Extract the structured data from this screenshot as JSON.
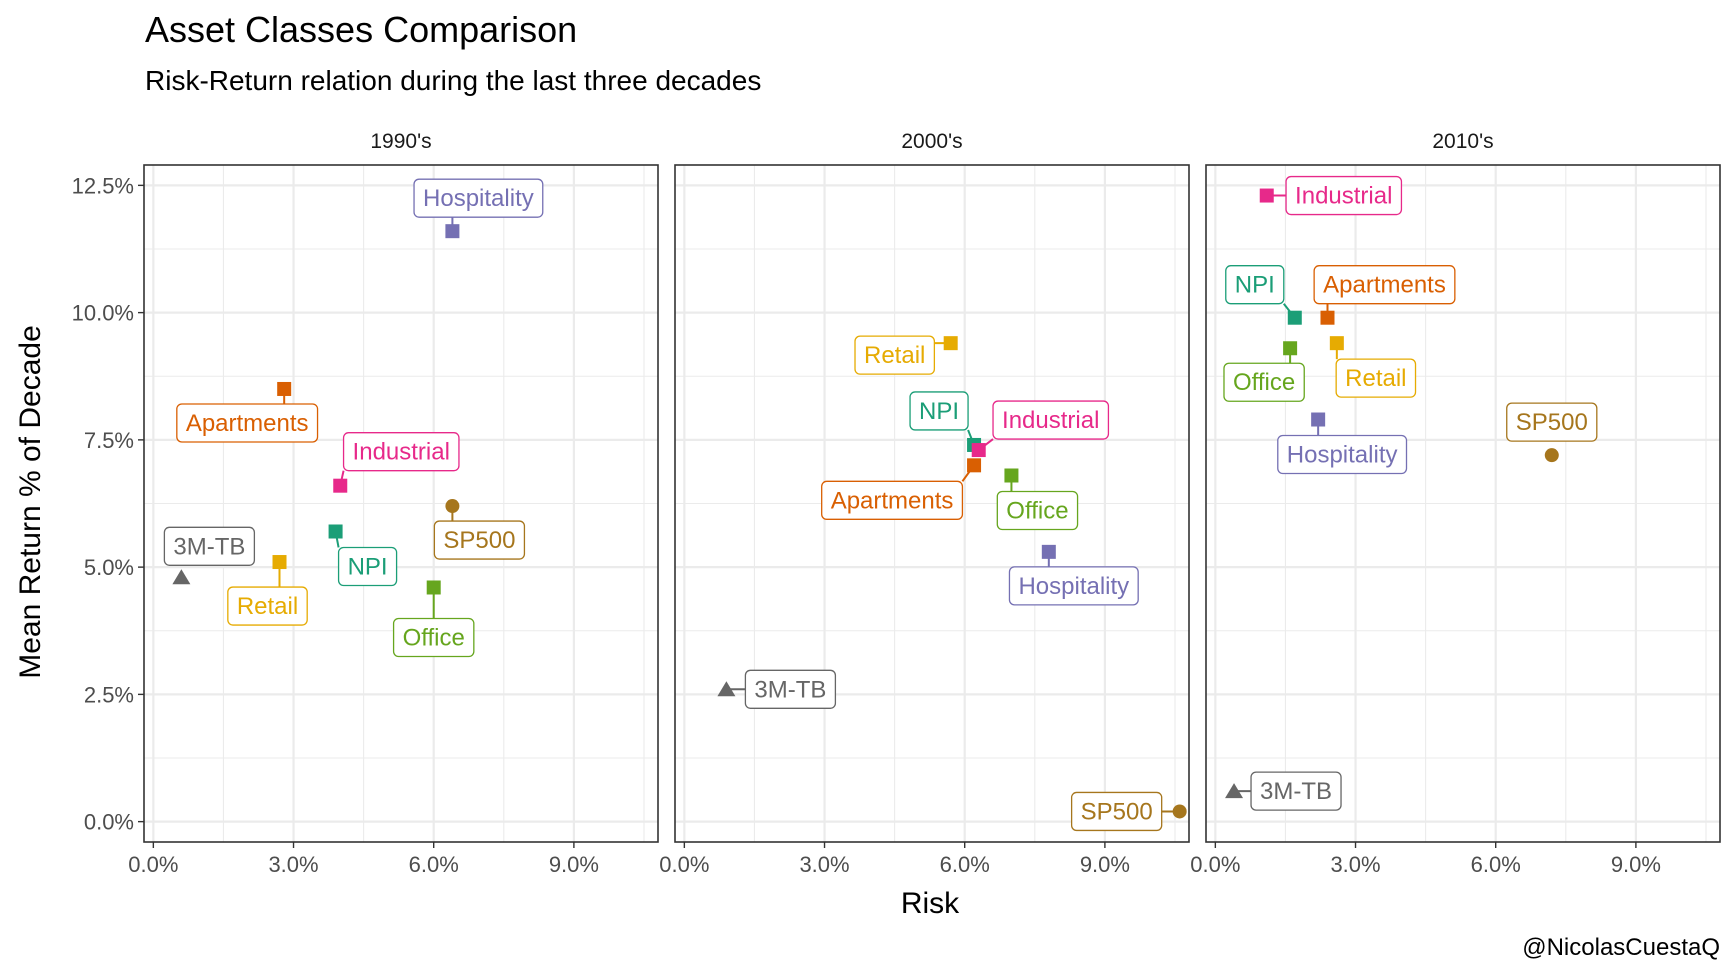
{
  "title": "Asset Classes Comparison",
  "subtitle": "Risk-Return relation during the last three decades",
  "caption": "@NicolasCuestaQ",
  "colors": {
    "NPI": "#1b9e77",
    "Apartments": "#d95f02",
    "Hospitality": "#7570b3",
    "Industrial": "#e7298a",
    "Office": "#66a61e",
    "Retail": "#e6ab02",
    "SP500": "#a6761d",
    "3M-TB": "#666666"
  },
  "chart_data": {
    "type": "scatter",
    "facet_by": "decade",
    "xlabel": "Risk",
    "ylabel": "Mean Return % of Decade",
    "xlim": [
      -0.2,
      10.8
    ],
    "ylim": [
      -0.4,
      12.9
    ],
    "xticks": [
      0,
      3,
      6,
      9
    ],
    "xtick_labels": [
      "0.0%",
      "3.0%",
      "6.0%",
      "9.0%"
    ],
    "yticks": [
      0,
      2.5,
      5,
      7.5,
      10,
      12.5
    ],
    "ytick_labels": [
      "0.0%",
      "2.5%",
      "5.0%",
      "7.5%",
      "10.0%",
      "12.5%"
    ],
    "grid": true,
    "legend": "none",
    "panels": [
      {
        "name": "1990's",
        "points": [
          {
            "asset": "Hospitality",
            "x": 6.4,
            "y": 11.6,
            "shape": "square"
          },
          {
            "asset": "Apartments",
            "x": 2.8,
            "y": 8.5,
            "shape": "square"
          },
          {
            "asset": "Industrial",
            "x": 4.0,
            "y": 6.6,
            "shape": "square"
          },
          {
            "asset": "NPI",
            "x": 3.9,
            "y": 5.7,
            "shape": "square"
          },
          {
            "asset": "SP500",
            "x": 6.4,
            "y": 6.2,
            "shape": "circle"
          },
          {
            "asset": "Retail",
            "x": 2.7,
            "y": 5.1,
            "shape": "square"
          },
          {
            "asset": "Office",
            "x": 6.0,
            "y": 4.6,
            "shape": "square"
          },
          {
            "asset": "3M-TB",
            "x": 0.6,
            "y": 4.8,
            "shape": "triangle"
          }
        ]
      },
      {
        "name": "2000's",
        "points": [
          {
            "asset": "Retail",
            "x": 5.7,
            "y": 9.4,
            "shape": "square"
          },
          {
            "asset": "NPI",
            "x": 6.2,
            "y": 7.4,
            "shape": "square"
          },
          {
            "asset": "Industrial",
            "x": 6.3,
            "y": 7.3,
            "shape": "square"
          },
          {
            "asset": "Apartments",
            "x": 6.2,
            "y": 7.0,
            "shape": "square"
          },
          {
            "asset": "Office",
            "x": 7.0,
            "y": 6.8,
            "shape": "square"
          },
          {
            "asset": "Hospitality",
            "x": 7.8,
            "y": 5.3,
            "shape": "square"
          },
          {
            "asset": "3M-TB",
            "x": 0.9,
            "y": 2.6,
            "shape": "triangle"
          },
          {
            "asset": "SP500",
            "x": 10.6,
            "y": 0.2,
            "shape": "circle"
          }
        ]
      },
      {
        "name": "2010's",
        "points": [
          {
            "asset": "Industrial",
            "x": 1.1,
            "y": 12.3,
            "shape": "square"
          },
          {
            "asset": "NPI",
            "x": 1.7,
            "y": 9.9,
            "shape": "square"
          },
          {
            "asset": "Apartments",
            "x": 2.4,
            "y": 9.9,
            "shape": "square"
          },
          {
            "asset": "Retail",
            "x": 2.6,
            "y": 9.4,
            "shape": "square"
          },
          {
            "asset": "Office",
            "x": 1.6,
            "y": 9.3,
            "shape": "square"
          },
          {
            "asset": "Hospitality",
            "x": 2.2,
            "y": 7.9,
            "shape": "square"
          },
          {
            "asset": "SP500",
            "x": 7.2,
            "y": 7.2,
            "shape": "circle"
          },
          {
            "asset": "3M-TB",
            "x": 0.4,
            "y": 0.6,
            "shape": "triangle"
          }
        ]
      }
    ]
  }
}
